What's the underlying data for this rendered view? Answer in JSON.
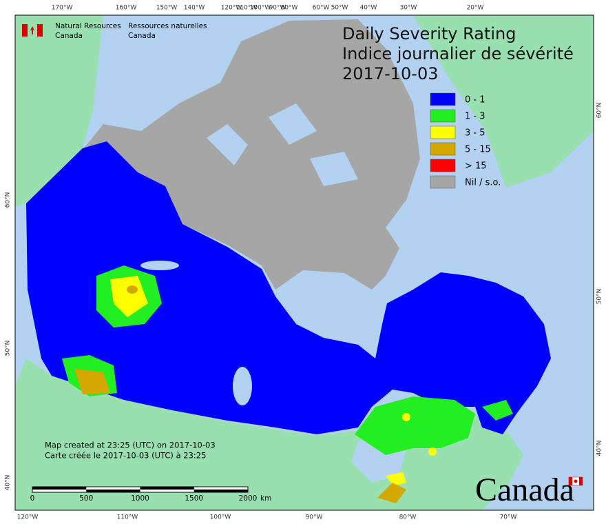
{
  "header": {
    "org_en": [
      "Natural Resources",
      "Canada"
    ],
    "org_fr": [
      "Ressources naturelles",
      "Canada"
    ]
  },
  "title": [
    "Daily Severity Rating",
    "Indice journalier de sévérité",
    "2017-10-03"
  ],
  "legend": [
    {
      "label": "0 - 1",
      "color": "#0000ff"
    },
    {
      "label": "1 - 3",
      "color": "#22ee22"
    },
    {
      "label": "3 - 5",
      "color": "#ffff00"
    },
    {
      "label": "5 - 15",
      "color": "#d4a800"
    },
    {
      "label": "> 15",
      "color": "#ff0000"
    },
    {
      "label": "Nil / s.o.",
      "color": "#a6a6a6"
    }
  ],
  "graticule": {
    "top": [
      "170°W",
      "160°W",
      "150°W",
      "140°W",
      "120°W",
      "110°W",
      "100°W",
      "90°W",
      "80°W",
      "60°W",
      "50°W",
      "40°W",
      "30°W",
      "20°W"
    ],
    "bottom": [
      "120°W",
      "110°W",
      "100°W",
      "90°W",
      "80°W",
      "70°W"
    ],
    "left": [
      "60°N",
      "50°N",
      "40°N"
    ],
    "right": [
      "60°N",
      "50°N",
      "40°N"
    ]
  },
  "credits": [
    "Map created at 23:25 (UTC) on 2017-10-03",
    "Carte créée le 2017-10-03 (UTC) à 23:25"
  ],
  "scale_bar": {
    "ticks": [
      0,
      500,
      1000,
      1500,
      2000
    ],
    "unit": "km"
  },
  "wordmark": "Canada"
}
